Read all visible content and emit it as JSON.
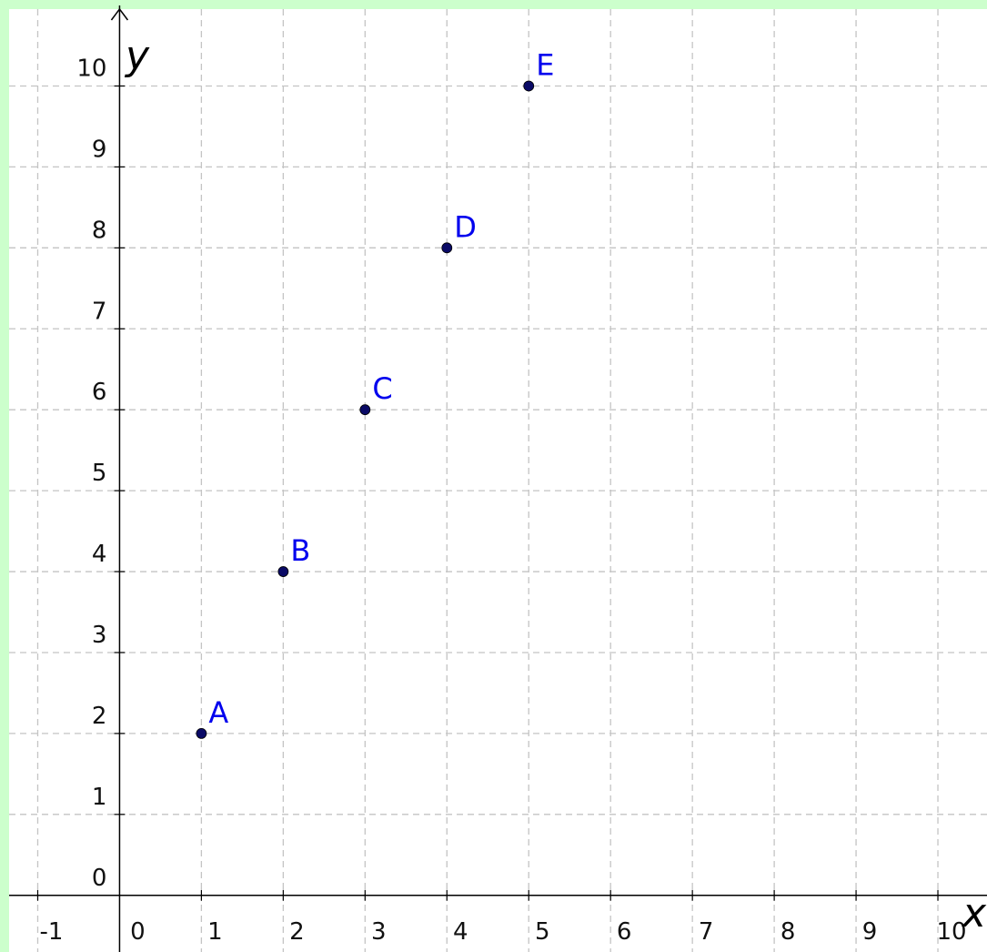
{
  "colors": {
    "frame": "#ccffcc",
    "plot_background": "#ffffff",
    "grid": "#c4c4c4",
    "axis": "#000000",
    "point_fill": "#0a0a66",
    "point_label": "#0000ee"
  },
  "chart_data": {
    "type": "scatter",
    "title": "",
    "xlabel": "x",
    "ylabel": "y",
    "xlim": [
      -1.35,
      10.6
    ],
    "ylim": [
      -0.7,
      10.95
    ],
    "grid": true,
    "x_ticks": [
      -1,
      0,
      1,
      2,
      3,
      4,
      5,
      6,
      7,
      8,
      9,
      10
    ],
    "y_ticks": [
      0,
      1,
      2,
      3,
      4,
      5,
      6,
      7,
      8,
      9,
      10
    ],
    "x_tick_labels": [
      "-1",
      "0",
      "1",
      "2",
      "3",
      "4",
      "5",
      "6",
      "7",
      "8",
      "9",
      "10"
    ],
    "y_tick_labels": [
      "0",
      "1",
      "2",
      "3",
      "4",
      "5",
      "6",
      "7",
      "8",
      "9",
      "10"
    ],
    "points": [
      {
        "label": "A",
        "x": 1,
        "y": 2
      },
      {
        "label": "B",
        "x": 2,
        "y": 4
      },
      {
        "label": "C",
        "x": 3,
        "y": 6
      },
      {
        "label": "D",
        "x": 4,
        "y": 8
      },
      {
        "label": "E",
        "x": 5,
        "y": 10
      }
    ]
  }
}
